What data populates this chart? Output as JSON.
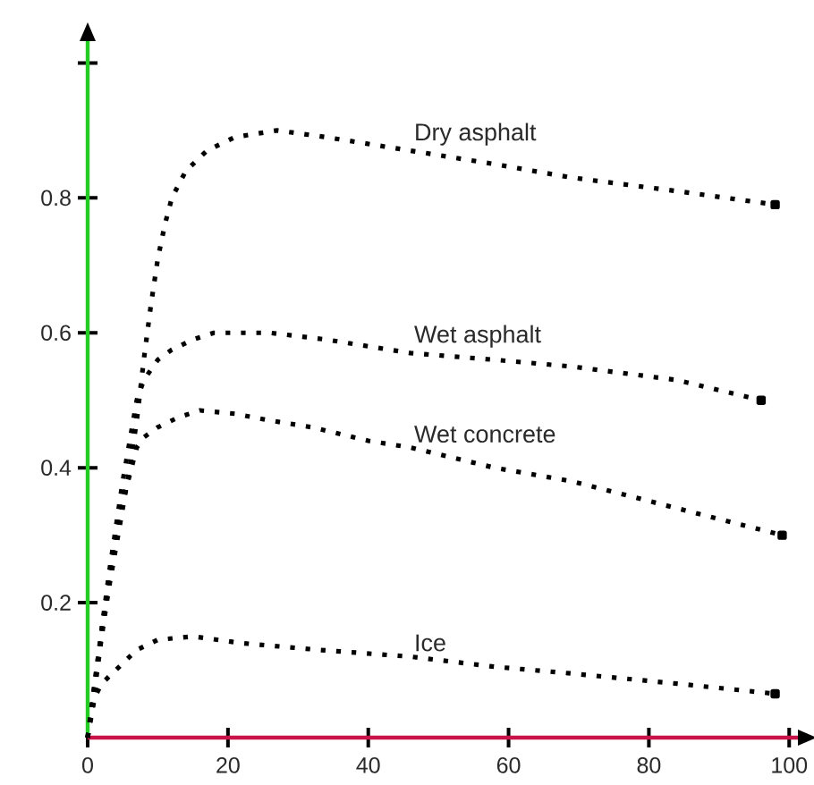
{
  "chart_data": {
    "type": "line",
    "line_style": "dotted",
    "xlim": [
      0,
      101.5
    ],
    "ylim": [
      0,
      1.035
    ],
    "xticks": [
      0,
      20,
      40,
      60,
      80,
      100
    ],
    "yticks": [
      0.2,
      0.4,
      0.6,
      0.8,
      {
        "value": 1.0,
        "label": null
      }
    ],
    "series": [
      {
        "name": "Dry asphalt",
        "color": "#000000",
        "x": [
          0,
          1,
          2,
          3,
          4,
          5,
          6,
          7,
          8,
          9,
          10,
          11,
          12,
          14,
          17,
          21,
          27,
          34,
          46,
          58,
          69,
          84,
          98
        ],
        "values": [
          0,
          0.07,
          0.15,
          0.22,
          0.28,
          0.34,
          0.4,
          0.47,
          0.56,
          0.64,
          0.71,
          0.76,
          0.8,
          0.84,
          0.87,
          0.89,
          0.9,
          0.89,
          0.87,
          0.85,
          0.83,
          0.81,
          0.79
        ]
      },
      {
        "name": "Wet asphalt",
        "color": "#000000",
        "x": [
          0,
          1,
          2,
          3,
          4,
          5,
          6,
          7,
          8,
          10,
          12,
          15,
          18,
          21,
          26,
          34,
          46,
          58,
          69,
          84,
          96
        ],
        "values": [
          0,
          0.08,
          0.16,
          0.24,
          0.31,
          0.38,
          0.44,
          0.5,
          0.53,
          0.56,
          0.575,
          0.59,
          0.6,
          0.6,
          0.6,
          0.59,
          0.57,
          0.56,
          0.55,
          0.53,
          0.5
        ]
      },
      {
        "name": "Wet concrete",
        "color": "#000000",
        "x": [
          0,
          1,
          2,
          3,
          4,
          5,
          6,
          7,
          8,
          10,
          13,
          16,
          21,
          26,
          32,
          40,
          46,
          58,
          69,
          84,
          99
        ],
        "values": [
          0,
          0.08,
          0.16,
          0.23,
          0.3,
          0.35,
          0.39,
          0.43,
          0.445,
          0.46,
          0.475,
          0.485,
          0.48,
          0.47,
          0.46,
          0.44,
          0.43,
          0.4,
          0.38,
          0.34,
          0.3
        ]
      },
      {
        "name": "Ice",
        "color": "#000000",
        "x": [
          0,
          1,
          2,
          4,
          7,
          10,
          15,
          22,
          33,
          46,
          58,
          69,
          84,
          98
        ],
        "values": [
          0,
          0.06,
          0.08,
          0.1,
          0.13,
          0.145,
          0.15,
          0.14,
          0.13,
          0.12,
          0.105,
          0.095,
          0.08,
          0.065
        ]
      }
    ]
  }
}
